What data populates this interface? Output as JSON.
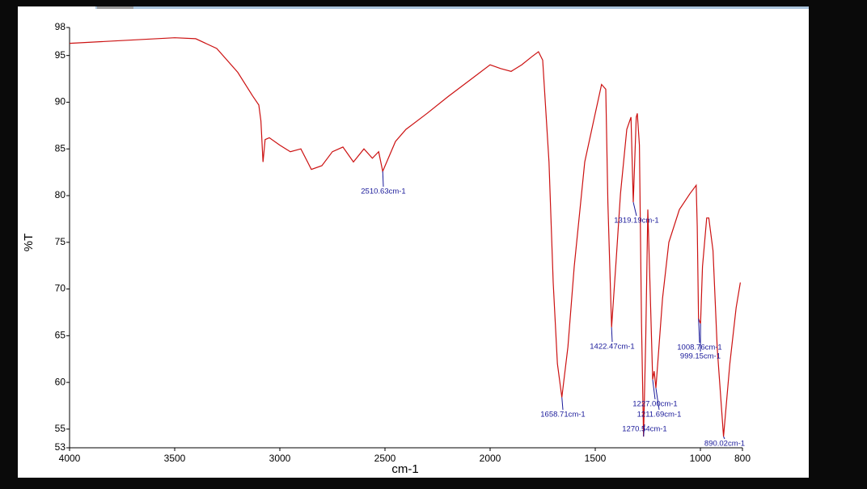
{
  "chart_data": {
    "type": "line",
    "xlabel": "cm-1",
    "ylabel": "%T",
    "color": "#cc1111",
    "xlim": [
      4000,
      800
    ],
    "ylim": [
      53,
      98
    ],
    "xticks": [
      4000,
      3500,
      3000,
      2500,
      2000,
      1500,
      1000,
      800
    ],
    "yticks": [
      53,
      55,
      60,
      65,
      70,
      75,
      80,
      85,
      90,
      95,
      98
    ],
    "x": [
      4000,
      3500,
      3400,
      3300,
      3200,
      3130,
      3100,
      3090,
      3080,
      3070,
      3050,
      3000,
      2950,
      2900,
      2850,
      2800,
      2750,
      2700,
      2650,
      2600,
      2560,
      2530,
      2510.63,
      2450,
      2400,
      2300,
      2200,
      2100,
      2000,
      1950,
      1900,
      1850,
      1800,
      1770,
      1750,
      1720,
      1700,
      1680,
      1658.71,
      1630,
      1600,
      1550,
      1500,
      1470,
      1450,
      1440,
      1422.47,
      1400,
      1380,
      1350,
      1330,
      1319.19,
      1305,
      1300,
      1290,
      1280,
      1270.54,
      1260,
      1250,
      1240,
      1227,
      1220,
      1211.69,
      1180,
      1150,
      1100,
      1050,
      1020,
      1015,
      1008.76,
      999.15,
      990,
      970,
      960,
      940,
      920,
      890.02,
      860,
      830,
      810
    ],
    "values": [
      96.3,
      96.9,
      96.8,
      95.75,
      93.2,
      90.7,
      89.7,
      88,
      83.6,
      86,
      86.2,
      85.4,
      84.7,
      85,
      82.8,
      83.2,
      84.7,
      85.2,
      83.6,
      85,
      84,
      84.7,
      82.6,
      85.8,
      87.1,
      88.8,
      90.6,
      92.3,
      94,
      93.6,
      93.3,
      94,
      94.9,
      95.4,
      94.5,
      83.6,
      70.7,
      62,
      58.4,
      63.8,
      72.4,
      83.6,
      88.8,
      91.9,
      91.4,
      79.3,
      65.9,
      73.3,
      80.2,
      87.1,
      88.4,
      79.3,
      88.4,
      88.8,
      85.4,
      66.3,
      54.2,
      64.6,
      78.5,
      70.7,
      60.3,
      61.2,
      59.4,
      69,
      75,
      78.5,
      80.2,
      81.1,
      76.7,
      66.8,
      66.3,
      72.4,
      77.6,
      77.6,
      74.1,
      63.7,
      54.2,
      62,
      68,
      70.7
    ],
    "annotations": [
      {
        "text": "2510.63cm-1",
        "x": 2510.63,
        "y": 82.6
      },
      {
        "text": "1319.19cm-1",
        "x": 1319.19,
        "y": 79.3
      },
      {
        "text": "1422.47cm-1",
        "x": 1422.47,
        "y": 65.9
      },
      {
        "text": "1008.76cm-1",
        "x": 1008.76,
        "y": 66.8
      },
      {
        "text": "999.15cm-1",
        "x": 999.15,
        "y": 66.3
      },
      {
        "text": "1227.00cm-1",
        "x": 1227,
        "y": 60.3
      },
      {
        "text": "1211.69cm-1",
        "x": 1211.69,
        "y": 59.4
      },
      {
        "text": "1658.71cm-1",
        "x": 1658.71,
        "y": 58.4
      },
      {
        "text": "1270.54cm-1",
        "x": 1270.54,
        "y": 54.2
      },
      {
        "text": "890.02cm-1",
        "x": 890.02,
        "y": 54.2
      }
    ]
  }
}
